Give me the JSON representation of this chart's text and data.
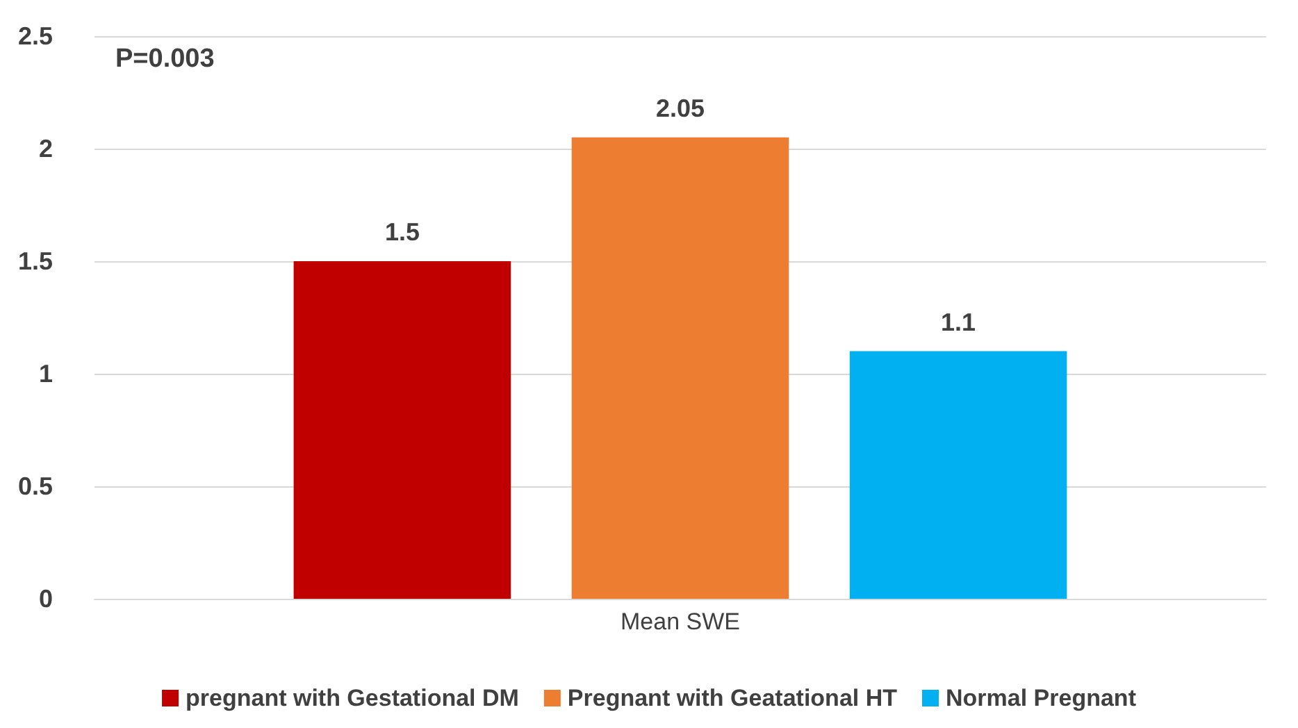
{
  "chart_data": {
    "type": "bar",
    "categories": [
      "Mean SWE"
    ],
    "series": [
      {
        "name": "pregnant with Gestational DM",
        "color": "#c00000",
        "values": [
          1.5
        ]
      },
      {
        "name": "Pregnant with Geatational HT",
        "color": "#ed7d31",
        "values": [
          2.05
        ]
      },
      {
        "name": "Normal Pregnant",
        "color": "#00b0f0",
        "values": [
          1.1
        ]
      }
    ],
    "ylim": [
      0,
      2.5
    ],
    "yticks": [
      0,
      0.5,
      1,
      1.5,
      2,
      2.5
    ],
    "grid": "y",
    "legend": "bottom",
    "data_labels": true,
    "annotations": [
      "P=0.003"
    ]
  }
}
